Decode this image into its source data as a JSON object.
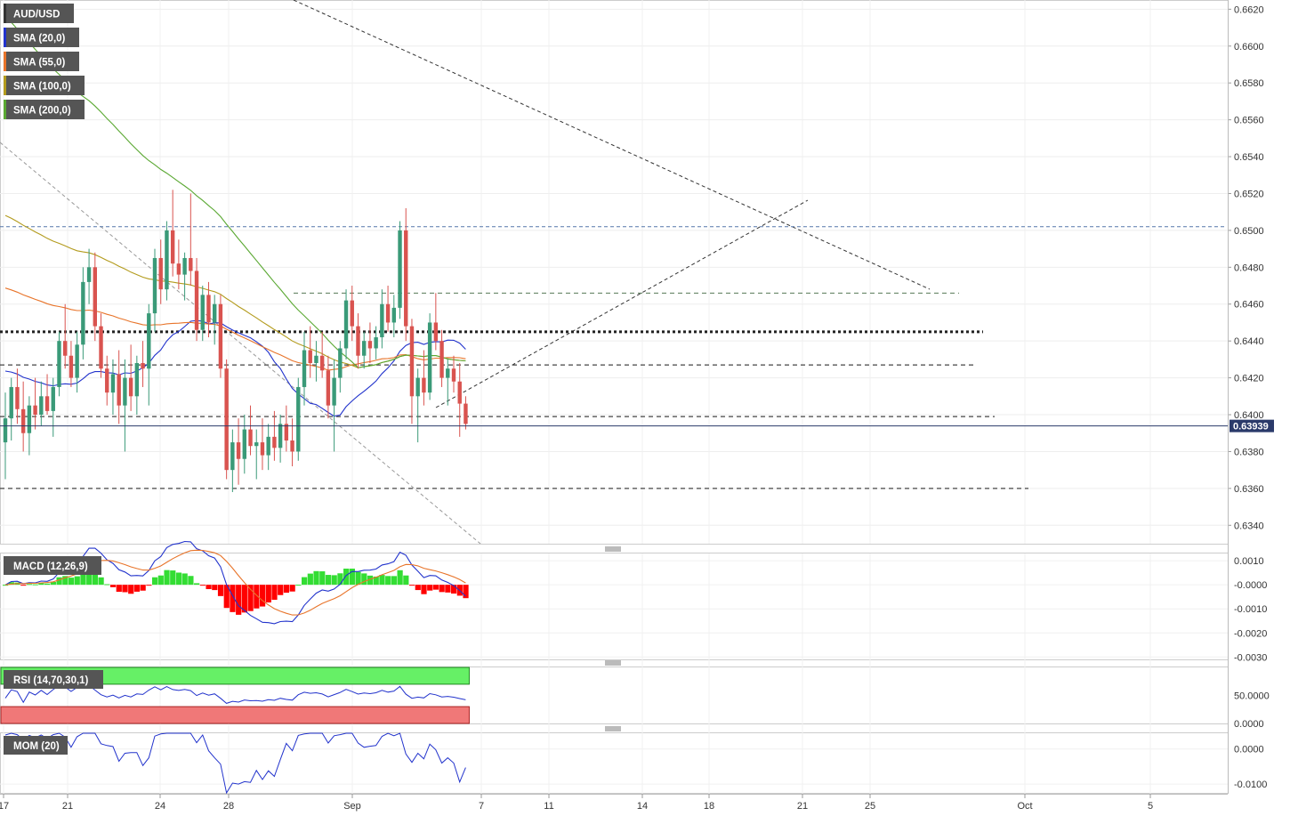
{
  "chart_data": {
    "type": "candlestick",
    "symbol": "AUD/USD",
    "last_price": "0.63939",
    "price_axis": {
      "min": 0.633,
      "max": 0.6625,
      "ticks": [
        "0.6620",
        "0.6600",
        "0.6580",
        "0.6560",
        "0.6540",
        "0.6520",
        "0.6500",
        "0.6480",
        "0.6460",
        "0.6440",
        "0.6420",
        "0.6400",
        "0.6380",
        "0.6360",
        "0.6340"
      ]
    },
    "x_tick_labels": [
      "17",
      "21",
      "24",
      "28",
      "Sep",
      "7",
      "11",
      "14",
      "18",
      "21",
      "25",
      "Oct",
      "5"
    ],
    "indicators": [
      {
        "name": "SMA (20,0)",
        "color": "#2233cc"
      },
      {
        "name": "SMA (55,0)",
        "color": "#e8742a"
      },
      {
        "name": "SMA (100,0)",
        "color": "#b39b1d"
      },
      {
        "name": "SMA (200,0)",
        "color": "#5aa832"
      }
    ],
    "horizontal_levels": [
      {
        "value": 0.6502,
        "style": "dotted-blue"
      },
      {
        "value": 0.6466,
        "style": "dashed-green"
      },
      {
        "value": 0.6445,
        "style": "thick-dotted"
      },
      {
        "value": 0.6427,
        "style": "dashed"
      },
      {
        "value": 0.6399,
        "style": "dashed"
      },
      {
        "value": 0.636,
        "style": "dashed"
      }
    ],
    "candles": [
      {
        "o": 0.6385,
        "h": 0.6412,
        "l": 0.6365,
        "c": 0.6398
      },
      {
        "o": 0.6398,
        "h": 0.642,
        "l": 0.6386,
        "c": 0.6415
      },
      {
        "o": 0.6415,
        "h": 0.6425,
        "l": 0.6395,
        "c": 0.6403
      },
      {
        "o": 0.6403,
        "h": 0.6418,
        "l": 0.638,
        "c": 0.639
      },
      {
        "o": 0.639,
        "h": 0.641,
        "l": 0.6378,
        "c": 0.6405
      },
      {
        "o": 0.6405,
        "h": 0.642,
        "l": 0.6392,
        "c": 0.64
      },
      {
        "o": 0.64,
        "h": 0.6418,
        "l": 0.6394,
        "c": 0.641
      },
      {
        "o": 0.641,
        "h": 0.6422,
        "l": 0.64,
        "c": 0.6402
      },
      {
        "o": 0.6402,
        "h": 0.642,
        "l": 0.6388,
        "c": 0.6415
      },
      {
        "o": 0.6415,
        "h": 0.6445,
        "l": 0.641,
        "c": 0.644
      },
      {
        "o": 0.644,
        "h": 0.646,
        "l": 0.6425,
        "c": 0.6432
      },
      {
        "o": 0.6432,
        "h": 0.644,
        "l": 0.6415,
        "c": 0.642
      },
      {
        "o": 0.642,
        "h": 0.6445,
        "l": 0.6412,
        "c": 0.6438
      },
      {
        "o": 0.6438,
        "h": 0.648,
        "l": 0.643,
        "c": 0.6472
      },
      {
        "o": 0.6472,
        "h": 0.649,
        "l": 0.646,
        "c": 0.648
      },
      {
        "o": 0.648,
        "h": 0.6488,
        "l": 0.644,
        "c": 0.6448
      },
      {
        "o": 0.6448,
        "h": 0.6455,
        "l": 0.642,
        "c": 0.6425
      },
      {
        "o": 0.6425,
        "h": 0.6432,
        "l": 0.6405,
        "c": 0.6412
      },
      {
        "o": 0.6412,
        "h": 0.643,
        "l": 0.64,
        "c": 0.6422
      },
      {
        "o": 0.6422,
        "h": 0.6435,
        "l": 0.6395,
        "c": 0.6405
      },
      {
        "o": 0.6405,
        "h": 0.643,
        "l": 0.638,
        "c": 0.642
      },
      {
        "o": 0.642,
        "h": 0.6438,
        "l": 0.6402,
        "c": 0.641
      },
      {
        "o": 0.641,
        "h": 0.6432,
        "l": 0.64,
        "c": 0.6428
      },
      {
        "o": 0.6428,
        "h": 0.644,
        "l": 0.6415,
        "c": 0.6425
      },
      {
        "o": 0.6425,
        "h": 0.646,
        "l": 0.6405,
        "c": 0.6455
      },
      {
        "o": 0.6455,
        "h": 0.649,
        "l": 0.6445,
        "c": 0.6485
      },
      {
        "o": 0.6485,
        "h": 0.6495,
        "l": 0.646,
        "c": 0.6468
      },
      {
        "o": 0.6468,
        "h": 0.6505,
        "l": 0.6462,
        "c": 0.65
      },
      {
        "o": 0.65,
        "h": 0.6522,
        "l": 0.6475,
        "c": 0.6482
      },
      {
        "o": 0.6482,
        "h": 0.6495,
        "l": 0.6468,
        "c": 0.6476
      },
      {
        "o": 0.6476,
        "h": 0.6488,
        "l": 0.6462,
        "c": 0.6485
      },
      {
        "o": 0.6485,
        "h": 0.652,
        "l": 0.647,
        "c": 0.6478
      },
      {
        "o": 0.6478,
        "h": 0.6485,
        "l": 0.644,
        "c": 0.6446
      },
      {
        "o": 0.6446,
        "h": 0.647,
        "l": 0.644,
        "c": 0.6465
      },
      {
        "o": 0.6465,
        "h": 0.6472,
        "l": 0.6442,
        "c": 0.645
      },
      {
        "o": 0.645,
        "h": 0.6465,
        "l": 0.6438,
        "c": 0.646
      },
      {
        "o": 0.646,
        "h": 0.6465,
        "l": 0.642,
        "c": 0.6425
      },
      {
        "o": 0.6425,
        "h": 0.643,
        "l": 0.6365,
        "c": 0.637
      },
      {
        "o": 0.637,
        "h": 0.6392,
        "l": 0.6358,
        "c": 0.6385
      },
      {
        "o": 0.6385,
        "h": 0.6398,
        "l": 0.6362,
        "c": 0.6376
      },
      {
        "o": 0.6376,
        "h": 0.64,
        "l": 0.6368,
        "c": 0.6392
      },
      {
        "o": 0.6392,
        "h": 0.6405,
        "l": 0.6378,
        "c": 0.6383
      },
      {
        "o": 0.6383,
        "h": 0.6392,
        "l": 0.6365,
        "c": 0.6385
      },
      {
        "o": 0.6385,
        "h": 0.6398,
        "l": 0.637,
        "c": 0.6378
      },
      {
        "o": 0.6378,
        "h": 0.6395,
        "l": 0.637,
        "c": 0.6388
      },
      {
        "o": 0.6388,
        "h": 0.6402,
        "l": 0.6375,
        "c": 0.6382
      },
      {
        "o": 0.6382,
        "h": 0.64,
        "l": 0.6374,
        "c": 0.6395
      },
      {
        "o": 0.6395,
        "h": 0.6405,
        "l": 0.638,
        "c": 0.6386
      },
      {
        "o": 0.6386,
        "h": 0.6398,
        "l": 0.6372,
        "c": 0.638
      },
      {
        "o": 0.638,
        "h": 0.642,
        "l": 0.6375,
        "c": 0.6415
      },
      {
        "o": 0.6415,
        "h": 0.6445,
        "l": 0.6405,
        "c": 0.6435
      },
      {
        "o": 0.6435,
        "h": 0.6448,
        "l": 0.642,
        "c": 0.6428
      },
      {
        "o": 0.6428,
        "h": 0.644,
        "l": 0.6418,
        "c": 0.6432
      },
      {
        "o": 0.6432,
        "h": 0.6445,
        "l": 0.642,
        "c": 0.6424
      },
      {
        "o": 0.6424,
        "h": 0.6432,
        "l": 0.6398,
        "c": 0.6405
      },
      {
        "o": 0.6405,
        "h": 0.643,
        "l": 0.638,
        "c": 0.642
      },
      {
        "o": 0.642,
        "h": 0.644,
        "l": 0.6412,
        "c": 0.6436
      },
      {
        "o": 0.6436,
        "h": 0.6468,
        "l": 0.643,
        "c": 0.6462
      },
      {
        "o": 0.6462,
        "h": 0.647,
        "l": 0.644,
        "c": 0.6448
      },
      {
        "o": 0.6448,
        "h": 0.6455,
        "l": 0.6425,
        "c": 0.6432
      },
      {
        "o": 0.6432,
        "h": 0.6445,
        "l": 0.6425,
        "c": 0.644
      },
      {
        "o": 0.644,
        "h": 0.645,
        "l": 0.6428,
        "c": 0.6436
      },
      {
        "o": 0.6436,
        "h": 0.6448,
        "l": 0.643,
        "c": 0.6442
      },
      {
        "o": 0.6442,
        "h": 0.6468,
        "l": 0.6436,
        "c": 0.646
      },
      {
        "o": 0.646,
        "h": 0.647,
        "l": 0.6445,
        "c": 0.645
      },
      {
        "o": 0.645,
        "h": 0.6465,
        "l": 0.6442,
        "c": 0.6458
      },
      {
        "o": 0.6458,
        "h": 0.6505,
        "l": 0.6452,
        "c": 0.65
      },
      {
        "o": 0.65,
        "h": 0.6512,
        "l": 0.644,
        "c": 0.6448
      },
      {
        "o": 0.6448,
        "h": 0.6452,
        "l": 0.6395,
        "c": 0.641
      },
      {
        "o": 0.641,
        "h": 0.6425,
        "l": 0.6385,
        "c": 0.642
      },
      {
        "o": 0.642,
        "h": 0.6435,
        "l": 0.6405,
        "c": 0.6412
      },
      {
        "o": 0.6412,
        "h": 0.6455,
        "l": 0.6408,
        "c": 0.645
      },
      {
        "o": 0.645,
        "h": 0.6466,
        "l": 0.6435,
        "c": 0.644
      },
      {
        "o": 0.644,
        "h": 0.6446,
        "l": 0.6415,
        "c": 0.642
      },
      {
        "o": 0.642,
        "h": 0.643,
        "l": 0.6405,
        "c": 0.6425
      },
      {
        "o": 0.6425,
        "h": 0.6432,
        "l": 0.6412,
        "c": 0.6418
      },
      {
        "o": 0.6418,
        "h": 0.6428,
        "l": 0.6388,
        "c": 0.6406
      },
      {
        "o": 0.6406,
        "h": 0.641,
        "l": 0.6392,
        "c": 0.6395
      }
    ],
    "macd": {
      "label": "MACD (12,26,9)",
      "ticks": [
        "0.0010",
        "-0.0000",
        "-0.0010",
        "-0.0020",
        "-0.0030"
      ],
      "min": -0.0031,
      "max": 0.0013
    },
    "rsi": {
      "label": "RSI (14,70,30,1)",
      "ticks": [
        "50.0000",
        "0.0000"
      ],
      "min": 0,
      "max": 100,
      "overbought": 70,
      "oversold": 30
    },
    "mom": {
      "label": "MOM (20)",
      "ticks": [
        "0.0000",
        "-0.0100"
      ],
      "min": -0.0125,
      "max": 0.0045
    }
  },
  "colors": {
    "bull": "#3a9a78",
    "bear": "#d9534f",
    "macd_pos": "#33dd33",
    "macd_neg": "#ff0000",
    "macd_line": "#2233cc",
    "signal_line": "#e8742a",
    "rsi_over": "#66f066",
    "rsi_under": "#f07878",
    "label_bg": "#555555"
  }
}
